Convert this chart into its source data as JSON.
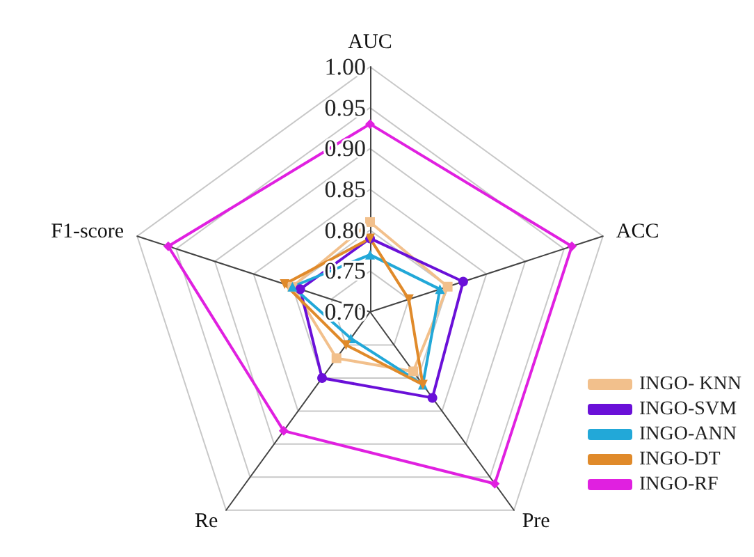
{
  "chart_data": {
    "type": "radar",
    "categories": [
      "AUC",
      "ACC",
      "Pre",
      "Re",
      "F1-score"
    ],
    "ylim": [
      0.7,
      1.0
    ],
    "yticks": [
      {
        "value": 0.7,
        "label": "0.70"
      },
      {
        "value": 0.75,
        "label": "0.75"
      },
      {
        "value": 0.8,
        "label": "0.80"
      },
      {
        "value": 0.85,
        "label": "0.85"
      },
      {
        "value": 0.9,
        "label": "0.90"
      },
      {
        "value": 0.95,
        "label": "0.95"
      },
      {
        "value": 1.0,
        "label": "1.00"
      }
    ],
    "grid": true,
    "legend": "bottom right",
    "series": [
      {
        "name": "INGO- KNN",
        "color": "#f2c08c",
        "marker": "square",
        "values": [
          0.81,
          0.8,
          0.79,
          0.77,
          0.8
        ]
      },
      {
        "name": "INGO-SVM",
        "color": "#6a10d8",
        "marker": "circle",
        "values": [
          0.79,
          0.82,
          0.83,
          0.8,
          0.79
        ]
      },
      {
        "name": "INGO-ANN",
        "color": "#22a8d8",
        "marker": "triangle",
        "values": [
          0.77,
          0.79,
          0.81,
          0.74,
          0.8
        ]
      },
      {
        "name": "INGO-DT",
        "color": "#e08a2a",
        "marker": "triangle-down",
        "values": [
          0.79,
          0.75,
          0.81,
          0.75,
          0.81
        ]
      },
      {
        "name": "INGO-RF",
        "color": "#e020e0",
        "marker": "diamond",
        "values": [
          0.93,
          0.96,
          0.96,
          0.88,
          0.96
        ]
      }
    ]
  }
}
